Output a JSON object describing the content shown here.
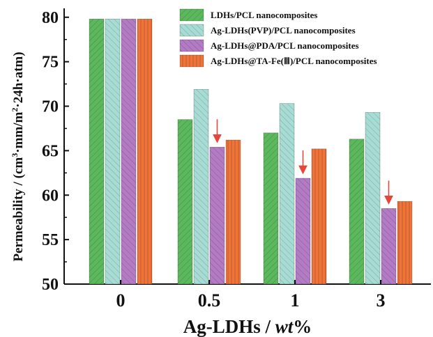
{
  "chart_data": {
    "type": "bar",
    "categories": [
      "0",
      "0.5",
      "1",
      "3"
    ],
    "series": [
      {
        "name": "LDHs/PCL  nanocomposites",
        "values": [
          79.8,
          68.5,
          67.0,
          66.3
        ],
        "color": "#5cb85c",
        "pattern": "hatch-diag-right"
      },
      {
        "name": "Ag-LDHs(PVP)/PCL  nanocomposites",
        "values": [
          79.8,
          71.9,
          70.3,
          69.3
        ],
        "color": "#a7dcd5",
        "pattern": "hatch-diag-left"
      },
      {
        "name": "Ag-LDHs@PDA/PCL nanocomposites",
        "values": [
          79.8,
          65.4,
          61.9,
          58.5
        ],
        "color": "#b27bc4",
        "pattern": "hatch-diag-left"
      },
      {
        "name": "Ag-LDHs@TA-Fe(Ⅲ)/PCL nanocomposites",
        "values": [
          79.8,
          66.2,
          65.2,
          59.3
        ],
        "color": "#f0743a",
        "pattern": "hatch-vertical"
      }
    ],
    "xlabel_prefix": "Ag-LDHs / ",
    "xlabel_italic": "wt",
    "xlabel_suffix": "%",
    "ylabel_main": "Permeability / (cm",
    "ylabel_sup1": "3",
    "ylabel_mid": "·mm/m",
    "ylabel_sup2": "2",
    "ylabel_end": "·24h·atm)",
    "ylim": [
      50,
      81
    ],
    "yticks": [
      50,
      55,
      60,
      65,
      70,
      75,
      80
    ],
    "legend_position": "top-right",
    "annotations": [
      {
        "type": "arrow",
        "category": "0.5",
        "series_index": 2,
        "color": "#e8453a"
      },
      {
        "type": "arrow",
        "category": "1",
        "series_index": 2,
        "color": "#e8453a"
      },
      {
        "type": "arrow",
        "category": "3",
        "series_index": 2,
        "color": "#e8453a"
      }
    ]
  }
}
